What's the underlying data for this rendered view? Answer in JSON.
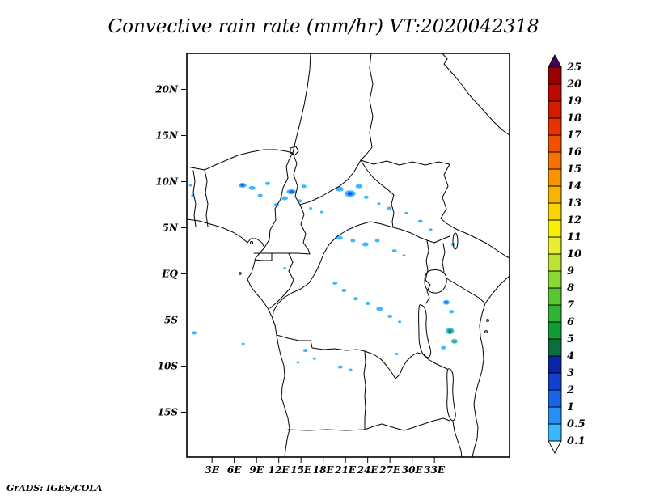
{
  "title": "Convective rain rate (mm/hr) VT:2020042318",
  "credit": "GrADS: IGES/COLA",
  "axes": {
    "lat_ticks": [
      {
        "value": 20,
        "label": "20N"
      },
      {
        "value": 15,
        "label": "15N"
      },
      {
        "value": 10,
        "label": "10N"
      },
      {
        "value": 5,
        "label": "5N"
      },
      {
        "value": 0,
        "label": "EQ"
      },
      {
        "value": -5,
        "label": "5S"
      },
      {
        "value": -10,
        "label": "10S"
      },
      {
        "value": -15,
        "label": "15S"
      }
    ],
    "lon_ticks": [
      {
        "value": 3,
        "label": "3E"
      },
      {
        "value": 6,
        "label": "6E"
      },
      {
        "value": 9,
        "label": "9E"
      },
      {
        "value": 12,
        "label": "12E"
      },
      {
        "value": 15,
        "label": "15E"
      },
      {
        "value": 18,
        "label": "18E"
      },
      {
        "value": 21,
        "label": "21E"
      },
      {
        "value": 24,
        "label": "24E"
      },
      {
        "value": 27,
        "label": "27E"
      },
      {
        "value": 30,
        "label": "30E"
      },
      {
        "value": 33,
        "label": "33E"
      }
    ]
  },
  "colorbar": {
    "orientation": "vertical",
    "position": "right",
    "open_ended_top": true,
    "open_ended_bottom": true
  },
  "chart_data": {
    "type": "heatmap",
    "title": "Convective rain rate (mm/hr)",
    "valid_time": "2020042318",
    "units": "mm/hr",
    "region": {
      "lon_min": -0.4,
      "lon_max": 43.1,
      "lat_min": -19.9,
      "lat_max": 23.9
    },
    "levels": [
      0.1,
      0.5,
      1,
      2,
      3,
      4,
      5,
      6,
      7,
      8,
      9,
      10,
      11,
      12,
      13,
      14,
      15,
      16,
      17,
      18,
      19,
      20,
      25
    ],
    "level_labels": [
      "0.1",
      "0.5",
      "1",
      "2",
      "3",
      "4",
      "5",
      "6",
      "7",
      "8",
      "9",
      "10",
      "11",
      "12",
      "13",
      "14",
      "15",
      "16",
      "17",
      "18",
      "19",
      "20",
      "25"
    ],
    "palette": [
      "#ffffff",
      "#3cb8ff",
      "#2690f8",
      "#1a64ea",
      "#1240cf",
      "#0a24a6",
      "#0c6e3c",
      "#109c30",
      "#30b431",
      "#58c832",
      "#8cd832",
      "#bce432",
      "#e8ee30",
      "#f8f000",
      "#f8d400",
      "#f8b400",
      "#f89400",
      "#f87000",
      "#f44e00",
      "#e83000",
      "#d61a00",
      "#c00800",
      "#9a0000",
      "#46005e"
    ],
    "rain_cells_note": "each cell: [lon_deg, lat_deg, rx_px, ry_px, palette_index]",
    "rain_cells": [
      [
        0.1,
        9.6,
        2,
        1.5,
        1
      ],
      [
        0.4,
        8.5,
        2,
        1.5,
        1
      ],
      [
        7.1,
        9.6,
        5,
        3,
        1
      ],
      [
        7.1,
        9.6,
        2.5,
        1.5,
        3
      ],
      [
        8.4,
        9.3,
        4,
        2.5,
        1
      ],
      [
        9.5,
        8.5,
        3,
        2,
        1
      ],
      [
        10.5,
        9.8,
        3,
        2,
        1
      ],
      [
        11.7,
        7.5,
        3,
        2,
        1
      ],
      [
        12.8,
        8.2,
        4,
        2.5,
        1
      ],
      [
        13.7,
        8.9,
        6,
        3,
        1
      ],
      [
        13.7,
        8.9,
        3,
        1.8,
        3
      ],
      [
        14.8,
        7.9,
        3,
        2,
        1
      ],
      [
        15.4,
        9.5,
        3,
        2,
        1
      ],
      [
        16.3,
        7.1,
        2,
        1.5,
        1
      ],
      [
        17.8,
        6.7,
        2,
        1.5,
        1
      ],
      [
        20.2,
        9.2,
        5,
        3,
        1
      ],
      [
        21.6,
        8.7,
        7,
        4,
        1
      ],
      [
        21.6,
        8.7,
        3.5,
        2.2,
        3
      ],
      [
        21.6,
        8.7,
        1.8,
        1.2,
        4
      ],
      [
        22.8,
        9.5,
        4,
        2.5,
        1
      ],
      [
        23.8,
        8.3,
        3,
        2,
        1
      ],
      [
        25.5,
        7.6,
        2,
        1.5,
        1
      ],
      [
        26.9,
        7.1,
        3,
        2,
        1
      ],
      [
        29.2,
        6.6,
        2,
        1.5,
        1
      ],
      [
        31.1,
        5.7,
        3,
        2,
        1
      ],
      [
        32.5,
        4.8,
        2,
        1.5,
        1
      ],
      [
        35.5,
        3.2,
        2.5,
        2,
        1
      ],
      [
        20.2,
        3.9,
        4,
        2.5,
        1
      ],
      [
        22.0,
        3.6,
        3,
        2,
        1
      ],
      [
        23.7,
        3.2,
        4,
        2.5,
        1
      ],
      [
        25.3,
        3.6,
        3,
        2,
        1
      ],
      [
        27.6,
        2.5,
        3,
        2,
        1
      ],
      [
        28.9,
        2.0,
        2,
        1.5,
        1
      ],
      [
        12.8,
        0.6,
        2,
        1.5,
        1
      ],
      [
        19.6,
        -1.0,
        3,
        2,
        1
      ],
      [
        20.8,
        -1.8,
        3,
        2,
        1
      ],
      [
        22.4,
        -2.7,
        3,
        2,
        1
      ],
      [
        24.0,
        -3.2,
        3,
        2,
        1
      ],
      [
        25.6,
        -3.8,
        4,
        2.5,
        1
      ],
      [
        27.0,
        -4.6,
        3,
        2,
        1
      ],
      [
        28.3,
        -5.2,
        2,
        1.5,
        1
      ],
      [
        34.6,
        -3.1,
        4,
        3,
        1
      ],
      [
        34.6,
        -3.1,
        2,
        1.5,
        3
      ],
      [
        35.3,
        -4.1,
        3,
        2,
        1
      ],
      [
        35.1,
        -6.2,
        5,
        4,
        1
      ],
      [
        35.1,
        -6.2,
        2.5,
        2,
        7
      ],
      [
        35.7,
        -7.3,
        4,
        3,
        1
      ],
      [
        35.7,
        -7.3,
        2,
        1.5,
        7
      ],
      [
        35.7,
        -7.2,
        1,
        1,
        12
      ],
      [
        34.2,
        -8.0,
        3,
        2,
        1
      ],
      [
        15.6,
        -8.3,
        3,
        2,
        1
      ],
      [
        16.8,
        -9.2,
        2,
        1.5,
        1
      ],
      [
        20.3,
        -10.1,
        3,
        2,
        1
      ],
      [
        21.7,
        -10.4,
        2,
        1.5,
        1
      ],
      [
        27.9,
        -8.7,
        2,
        1.5,
        1
      ],
      [
        0.6,
        -6.4,
        3,
        2,
        1
      ],
      [
        7.2,
        -7.6,
        2,
        1.5,
        1
      ],
      [
        14.6,
        -9.6,
        2,
        1.5,
        1
      ]
    ]
  }
}
